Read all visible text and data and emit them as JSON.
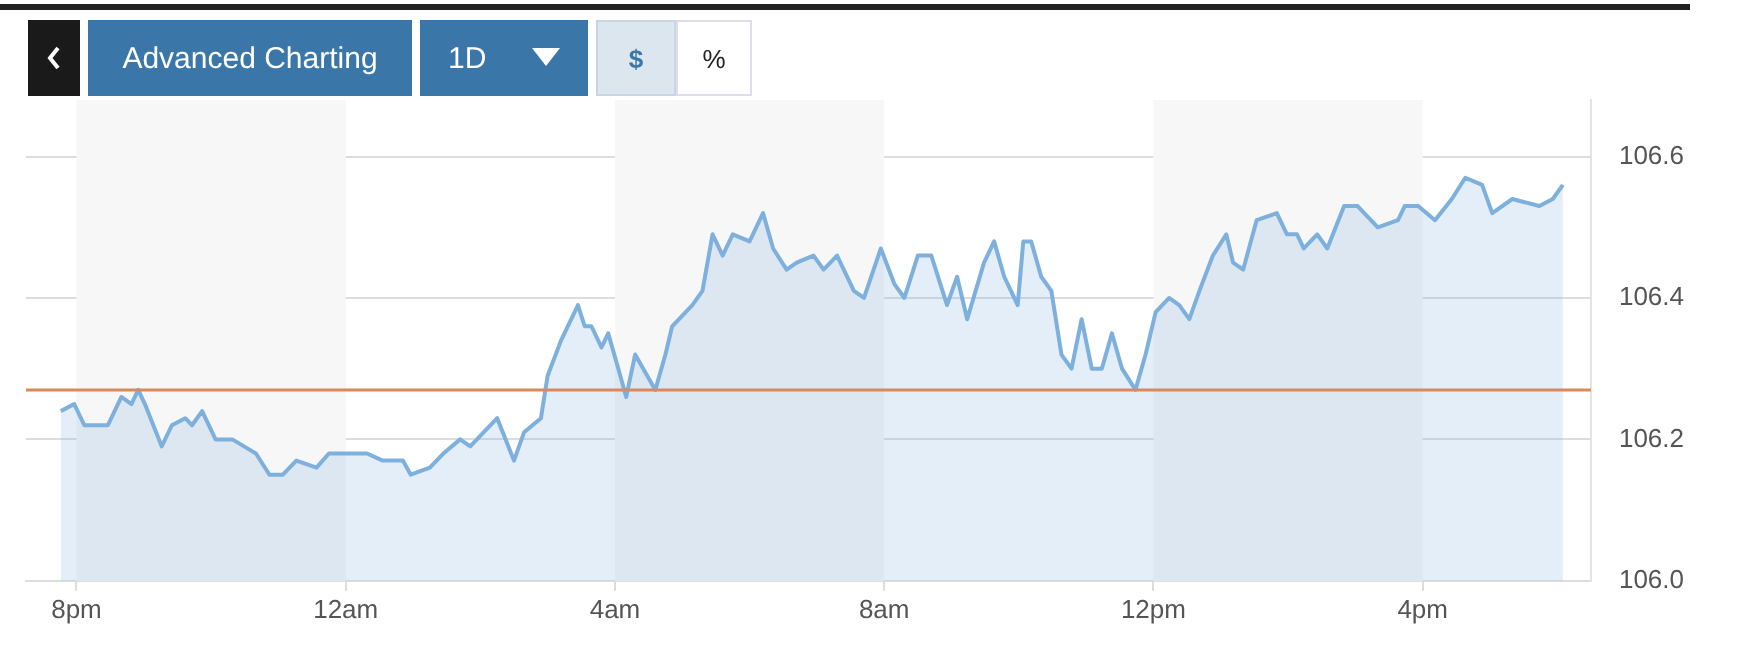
{
  "chart_data": {
    "type": "area",
    "annotations": [
      "Advanced Charting",
      "1D",
      "$",
      "%"
    ],
    "xlim": [
      "--01-01T19:15",
      "--01-02T18:30"
    ],
    "xticks": [
      {
        "value": "--01-01T20:00",
        "label": "8pm"
      },
      {
        "value": "--01-02T00:00",
        "label": "12am"
      },
      {
        "value": "--01-02T04:00",
        "label": "4am"
      },
      {
        "value": "--01-02T08:00",
        "label": "8am"
      },
      {
        "value": "--01-02T12:00",
        "label": "12pm"
      },
      {
        "value": "--01-02T16:00",
        "label": "4pm"
      }
    ],
    "ylim": [
      106,
      106.68
    ],
    "yticks": [
      {
        "value": 106,
        "label": "106.0"
      },
      106.2,
      106.4,
      106.6
    ],
    "grid": "y",
    "bands": [
      {
        "axis": "x",
        "from": "--01-01T20:00",
        "to": "--01-02T00:00",
        "color": "#f7f7f7"
      },
      {
        "axis": "x",
        "from": "--01-02T04:00",
        "to": "--01-02T08:00",
        "color": "#f7f7f7"
      },
      {
        "axis": "x",
        "from": "--01-02T12:00",
        "to": "--01-02T16:00",
        "color": "#f7f7f7"
      }
    ],
    "ref_lines": [
      {
        "axis": "y",
        "value": 106.27,
        "color": "#d9895b"
      }
    ],
    "series": [
      {
        "color": "#7eb0de",
        "x": [
          "--01-01T19:46",
          "--01-01T19:58",
          "--01-01T20:07",
          "--01-01T20:28",
          "--01-01T20:40",
          "--01-01T20:49",
          "--01-01T20:55",
          "--01-01T21:01",
          "--01-01T21:16",
          "--01-01T21:25",
          "--01-01T21:37",
          "--01-01T21:43",
          "--01-01T21:52",
          "--01-01T22:04",
          "--01-01T22:19",
          "--01-01T22:40",
          "--01-01T22:52",
          "--01-01T23:04",
          "--01-01T23:16",
          "--01-01T23:34",
          "--01-01T23:45",
          "--01-02T00:19",
          "--01-02T00:33",
          "--01-02T00:51",
          "--01-02T00:58",
          "--01-02T01:15",
          "--01-02T01:27",
          "--01-02T01:42",
          "--01-02T01:51",
          "--01-02T02:15",
          "--01-02T02:30",
          "--01-02T02:39",
          "--01-02T02:54",
          "--01-02T03:00",
          "--01-02T03:12",
          "--01-02T03:27",
          "--01-02T03:33",
          "--01-02T03:39",
          "--01-02T03:48",
          "--01-02T03:54",
          "--01-02T04:03",
          "--01-02T04:10",
          "--01-02T04:18",
          "--01-02T04:36",
          "--01-02T04:45",
          "--01-02T04:51",
          "--01-02T05:09",
          "--01-02T05:18",
          "--01-02T05:27",
          "--01-02T05:36",
          "--01-02T05:45",
          "--01-02T06:00",
          "--01-02T06:12",
          "--01-02T06:21",
          "--01-02T06:33",
          "--01-02T06:42",
          "--01-02T06:57",
          "--01-02T07:06",
          "--01-02T07:18",
          "--01-02T07:33",
          "--01-02T07:42",
          "--01-02T07:57",
          "--01-02T08:09",
          "--01-02T08:18",
          "--01-02T08:30",
          "--01-02T08:42",
          "--01-02T08:56",
          "--01-02T09:05",
          "--01-02T09:14",
          "--01-02T09:29",
          "--01-02T09:38",
          "--01-02T09:47",
          "--01-02T09:59",
          "--01-02T10:04",
          "--01-02T10:11",
          "--01-02T10:20",
          "--01-02T10:29",
          "--01-02T10:38",
          "--01-02T10:47",
          "--01-02T10:56",
          "--01-02T11:05",
          "--01-02T11:14",
          "--01-02T11:23",
          "--01-02T11:32",
          "--01-02T11:44",
          "--01-02T11:53",
          "--01-02T12:02",
          "--01-02T12:14",
          "--01-02T12:23",
          "--01-02T12:32",
          "--01-02T12:41",
          "--01-02T12:53",
          "--01-02T13:05",
          "--01-02T13:11",
          "--01-02T13:20",
          "--01-02T13:32",
          "--01-02T13:50",
          "--01-02T13:59",
          "--01-02T14:08",
          "--01-02T14:14",
          "--01-02T14:26",
          "--01-02T14:35",
          "--01-02T14:50",
          "--01-02T15:02",
          "--01-02T15:20",
          "--01-02T15:38",
          "--01-02T15:44",
          "--01-02T15:56",
          "--01-02T16:11",
          "--01-02T16:26",
          "--01-02T16:38",
          "--01-02T16:53",
          "--01-02T17:02",
          "--01-02T17:20",
          "--01-02T17:44",
          "--01-02T17:56",
          "--01-02T18:05"
        ],
        "values": [
          106.24,
          106.25,
          106.22,
          106.22,
          106.26,
          106.25,
          106.27,
          106.25,
          106.19,
          106.22,
          106.23,
          106.22,
          106.24,
          106.2,
          106.2,
          106.18,
          106.15,
          106.15,
          106.17,
          106.16,
          106.18,
          106.18,
          106.17,
          106.17,
          106.15,
          106.16,
          106.18,
          106.2,
          106.19,
          106.23,
          106.17,
          106.21,
          106.23,
          106.29,
          106.34,
          106.39,
          106.36,
          106.36,
          106.33,
          106.35,
          106.3,
          106.26,
          106.32,
          106.27,
          106.32,
          106.36,
          106.39,
          106.41,
          106.49,
          106.46,
          106.49,
          106.48,
          106.52,
          106.47,
          106.44,
          106.45,
          106.46,
          106.44,
          106.46,
          106.41,
          106.4,
          106.47,
          106.42,
          106.4,
          106.46,
          106.46,
          106.39,
          106.43,
          106.37,
          106.45,
          106.48,
          106.43,
          106.39,
          106.48,
          106.48,
          106.43,
          106.41,
          106.32,
          106.3,
          106.37,
          106.3,
          106.3,
          106.35,
          106.3,
          106.27,
          106.32,
          106.38,
          106.4,
          106.39,
          106.37,
          106.41,
          106.46,
          106.49,
          106.45,
          106.44,
          106.51,
          106.52,
          106.49,
          106.49,
          106.47,
          106.49,
          106.47,
          106.53,
          106.53,
          106.5,
          106.51,
          106.53,
          106.53,
          106.51,
          106.54,
          106.57,
          106.56,
          106.52,
          106.54,
          106.53,
          106.54,
          106.56
        ]
      }
    ]
  }
}
